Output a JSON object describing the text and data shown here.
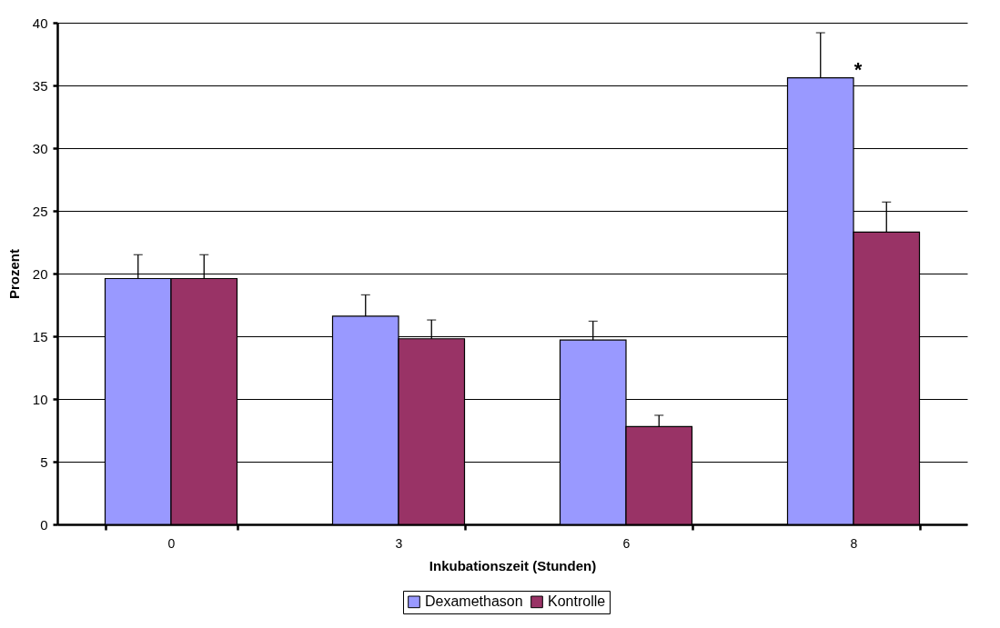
{
  "chart_data": {
    "type": "bar",
    "xlabel": "Inkubationszeit (Stunden)",
    "ylabel": "Prozent",
    "categories": [
      "0",
      "3",
      "6",
      "8"
    ],
    "series": [
      {
        "name": "Dexamethason",
        "color": "#9999ff",
        "values": [
          19.6,
          16.6,
          14.7,
          35.6
        ],
        "errors": [
          1.9,
          1.7,
          1.5,
          3.6
        ]
      },
      {
        "name": "Kontrolle",
        "color": "#993366",
        "values": [
          19.6,
          14.8,
          7.8,
          23.3
        ],
        "errors": [
          1.9,
          1.5,
          0.9,
          2.4
        ]
      }
    ],
    "ylim": [
      0,
      40
    ],
    "yticks": [
      0,
      5,
      10,
      15,
      20,
      25,
      30,
      35,
      40
    ],
    "grid": "y",
    "legend": "bottom",
    "annotations": [
      "*"
    ]
  }
}
